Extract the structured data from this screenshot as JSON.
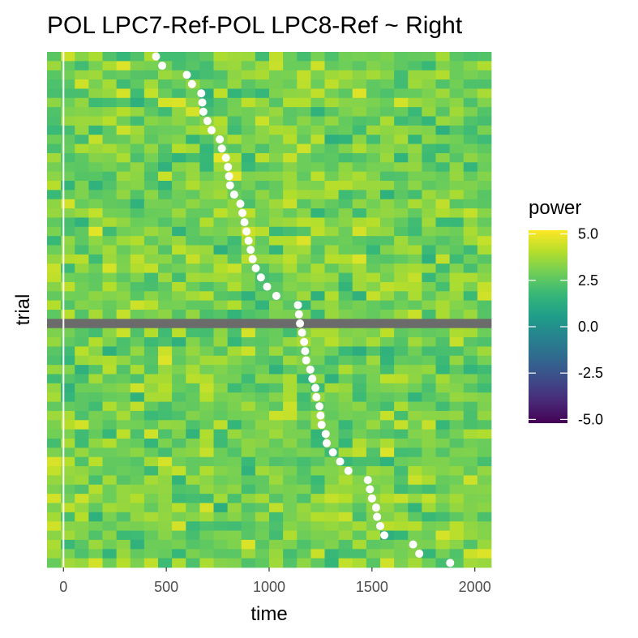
{
  "chart_data": {
    "type": "heatmap",
    "title": "POL LPC7-Ref-POL LPC8-Ref ~ Right",
    "xlabel": "time",
    "ylabel": "trial",
    "xlim": [
      -80,
      2080
    ],
    "x_ticks": [
      0,
      500,
      1000,
      1500,
      2000
    ],
    "x_tick_labels": [
      "0",
      "500",
      "1000",
      "1500",
      "2000"
    ],
    "n_trials": 56,
    "n_time_bins": 32,
    "time_bin_width": 66,
    "vline_x": 0,
    "excluded_trial": 29,
    "excluded_color": "#6b6b6b",
    "grid": true,
    "legend": {
      "title": "power",
      "position": "right",
      "limits": [
        -5.2,
        5.2
      ],
      "ticks": [
        5.0,
        2.5,
        0.0,
        -2.5,
        -5.0
      ],
      "tick_labels": [
        "5.0",
        "2.5",
        "0.0",
        "-2.5",
        "-5.0"
      ]
    },
    "colormap": "viridis",
    "colors": {
      "panel_background": "#ffffff",
      "grid_line": "#e5e5e5",
      "vline": "#ffffff",
      "event_marker": "#ffffff"
    },
    "power_range_shown": [
      1.2,
      4.8
    ],
    "event_times": [
      450,
      480,
      600,
      625,
      670,
      675,
      680,
      700,
      720,
      760,
      770,
      790,
      800,
      805,
      810,
      830,
      860,
      870,
      880,
      890,
      900,
      910,
      920,
      935,
      960,
      990,
      1035,
      1140,
      1145,
      1150,
      1160,
      1170,
      1175,
      1180,
      1200,
      1210,
      1225,
      1230,
      1245,
      1250,
      1255,
      1275,
      1280,
      1310,
      1345,
      1385,
      1480,
      1490,
      1500,
      1520,
      1525,
      1540,
      1560,
      1700,
      1730,
      1880
    ]
  }
}
